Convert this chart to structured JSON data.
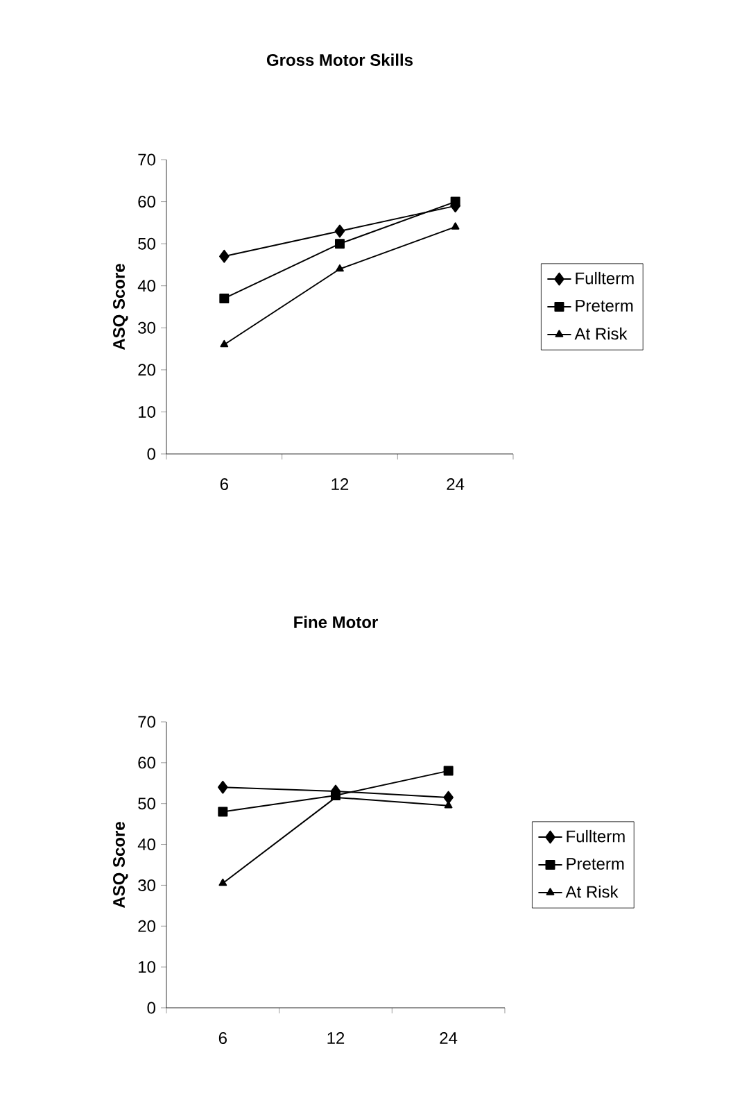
{
  "chart_data": [
    {
      "type": "line",
      "title": "Gross Motor Skills",
      "ylabel": "ASQ Score",
      "categories": [
        "6",
        "12",
        "24"
      ],
      "ylim": [
        0,
        70
      ],
      "yticks": [
        0,
        10,
        20,
        30,
        40,
        50,
        60,
        70
      ],
      "legend": "right",
      "line_style": "solid",
      "series": [
        {
          "name": "Fullterm",
          "color": "#000000",
          "marker": "diamond",
          "values": [
            47,
            53,
            59
          ]
        },
        {
          "name": "Preterm",
          "color": "#000000",
          "marker": "square",
          "values": [
            37,
            50,
            60
          ]
        },
        {
          "name": "At Risk",
          "color": "#000000",
          "marker": "triangle",
          "values": [
            26,
            44,
            54
          ]
        }
      ]
    },
    {
      "type": "line",
      "title": "Fine Motor",
      "ylabel": "ASQ Score",
      "categories": [
        "6",
        "12",
        "24"
      ],
      "ylim": [
        0,
        70
      ],
      "yticks": [
        0,
        10,
        20,
        30,
        40,
        50,
        60,
        70
      ],
      "legend": "right",
      "line_style": "solid",
      "series": [
        {
          "name": "Fullterm",
          "color": "#000000",
          "marker": "diamond",
          "values": [
            54,
            53,
            51.5
          ]
        },
        {
          "name": "Preterm",
          "color": "#000000",
          "marker": "square",
          "values": [
            48,
            52,
            58
          ]
        },
        {
          "name": "At Risk",
          "color": "#000000",
          "marker": "triangle",
          "values": [
            30.5,
            51.5,
            49.5
          ]
        }
      ]
    }
  ]
}
